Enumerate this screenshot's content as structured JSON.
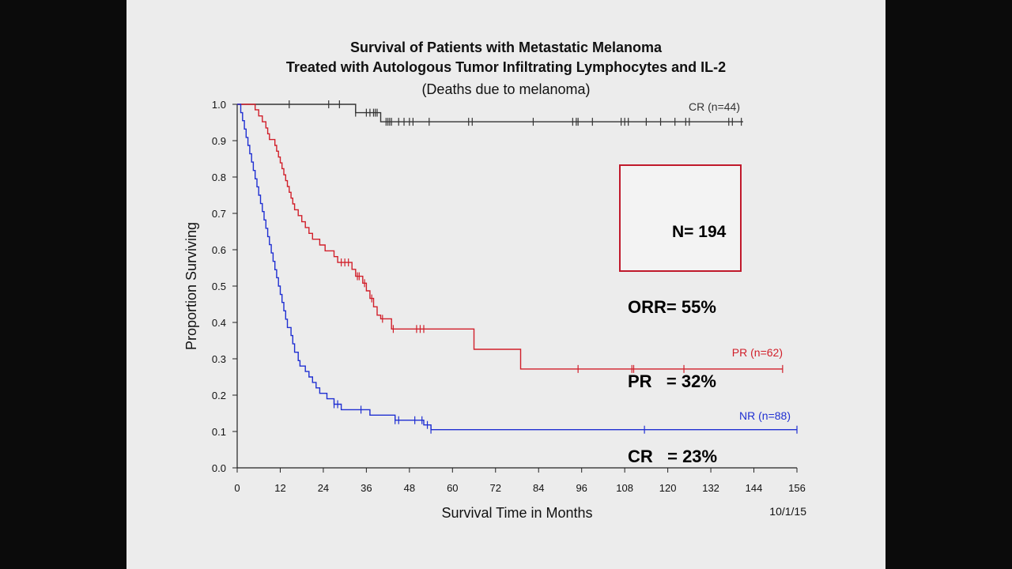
{
  "chart_data": {
    "type": "line",
    "title": "Survival of Patients with Metastatic Melanoma",
    "title_line2": "Treated with Autologous Tumor Infiltrating Lymphocytes and IL-2",
    "subtitle": "(Deaths due to melanoma)",
    "xlabel": "Survival Time in Months",
    "ylabel": "Proportion Surviving",
    "date_note": "10/1/15",
    "xlim": [
      0,
      156
    ],
    "ylim": [
      0.0,
      1.0
    ],
    "xticks": [
      "0",
      "12",
      "24",
      "36",
      "48",
      "60",
      "72",
      "84",
      "96",
      "108",
      "120",
      "132",
      "144",
      "156"
    ],
    "yticks": [
      "0.0",
      "0.1",
      "0.2",
      "0.3",
      "0.4",
      "0.5",
      "0.6",
      "0.7",
      "0.8",
      "0.9",
      "1.0"
    ],
    "grid": false,
    "series": [
      {
        "name": "CR (n=44)",
        "color": "#333333",
        "steps": [
          [
            0,
            1.0
          ],
          [
            33,
            1.0
          ],
          [
            33,
            0.977
          ],
          [
            40,
            0.977
          ],
          [
            40,
            0.952
          ],
          [
            141,
            0.952
          ]
        ],
        "censors": [
          14.5,
          25.5,
          28.5,
          33,
          36,
          37,
          38,
          38.5,
          39,
          41.5,
          42,
          42.5,
          43,
          45,
          46.5,
          48,
          49,
          53.5,
          64.5,
          65.5,
          82.5,
          93.5,
          94.5,
          95,
          99,
          107,
          108,
          109,
          114,
          118,
          122,
          125,
          126,
          137,
          138,
          140.5
        ]
      },
      {
        "name": "PR (n=62)",
        "color": "#d11f2a",
        "steps": [
          [
            0,
            1.0
          ],
          [
            5,
            1.0
          ],
          [
            5,
            0.985
          ],
          [
            6,
            0.985
          ],
          [
            6,
            0.968
          ],
          [
            7,
            0.968
          ],
          [
            7,
            0.952
          ],
          [
            8,
            0.952
          ],
          [
            8,
            0.935
          ],
          [
            8.5,
            0.935
          ],
          [
            8.5,
            0.919
          ],
          [
            9,
            0.919
          ],
          [
            9,
            0.903
          ],
          [
            10.5,
            0.903
          ],
          [
            10.5,
            0.887
          ],
          [
            11,
            0.887
          ],
          [
            11,
            0.871
          ],
          [
            11.5,
            0.871
          ],
          [
            11.5,
            0.855
          ],
          [
            12,
            0.855
          ],
          [
            12,
            0.839
          ],
          [
            12.5,
            0.839
          ],
          [
            12.5,
            0.823
          ],
          [
            13,
            0.823
          ],
          [
            13,
            0.806
          ],
          [
            13.5,
            0.806
          ],
          [
            13.5,
            0.79
          ],
          [
            14,
            0.79
          ],
          [
            14,
            0.774
          ],
          [
            14.5,
            0.774
          ],
          [
            14.5,
            0.758
          ],
          [
            15,
            0.758
          ],
          [
            15,
            0.742
          ],
          [
            15.5,
            0.742
          ],
          [
            15.5,
            0.726
          ],
          [
            16,
            0.726
          ],
          [
            16,
            0.71
          ],
          [
            17,
            0.71
          ],
          [
            17,
            0.694
          ],
          [
            18,
            0.694
          ],
          [
            18,
            0.677
          ],
          [
            19,
            0.677
          ],
          [
            19,
            0.661
          ],
          [
            20,
            0.661
          ],
          [
            20,
            0.645
          ],
          [
            21,
            0.645
          ],
          [
            21,
            0.629
          ],
          [
            23,
            0.629
          ],
          [
            23,
            0.613
          ],
          [
            24.5,
            0.613
          ],
          [
            24.5,
            0.597
          ],
          [
            27,
            0.597
          ],
          [
            27,
            0.581
          ],
          [
            28,
            0.581
          ],
          [
            28,
            0.565
          ],
          [
            32,
            0.565
          ],
          [
            32,
            0.546
          ],
          [
            33,
            0.546
          ],
          [
            33,
            0.527
          ],
          [
            35,
            0.527
          ],
          [
            35,
            0.508
          ],
          [
            36,
            0.508
          ],
          [
            36,
            0.487
          ],
          [
            37,
            0.487
          ],
          [
            37,
            0.466
          ],
          [
            38,
            0.466
          ],
          [
            38,
            0.443
          ],
          [
            39,
            0.443
          ],
          [
            39,
            0.42
          ],
          [
            40,
            0.42
          ],
          [
            40,
            0.41
          ],
          [
            43,
            0.41
          ],
          [
            43,
            0.382
          ],
          [
            66,
            0.382
          ],
          [
            66,
            0.326
          ],
          [
            79,
            0.326
          ],
          [
            79,
            0.272
          ],
          [
            152,
            0.272
          ]
        ],
        "censors": [
          29,
          30,
          31,
          33.5,
          34,
          35.5,
          37.5,
          40.5,
          43.5,
          50,
          51,
          52,
          95,
          110,
          110.5,
          124.5,
          152
        ]
      },
      {
        "name": "NR (n=88)",
        "color": "#1f2fd2",
        "steps": [
          [
            0,
            1.0
          ],
          [
            1,
            1.0
          ],
          [
            1,
            0.977
          ],
          [
            1.5,
            0.977
          ],
          [
            1.5,
            0.955
          ],
          [
            2,
            0.955
          ],
          [
            2,
            0.932
          ],
          [
            2.5,
            0.932
          ],
          [
            2.5,
            0.909
          ],
          [
            3,
            0.909
          ],
          [
            3,
            0.887
          ],
          [
            3.5,
            0.887
          ],
          [
            3.5,
            0.864
          ],
          [
            4,
            0.864
          ],
          [
            4,
            0.841
          ],
          [
            4.5,
            0.841
          ],
          [
            4.5,
            0.818
          ],
          [
            5,
            0.818
          ],
          [
            5,
            0.795
          ],
          [
            5.5,
            0.795
          ],
          [
            5.5,
            0.773
          ],
          [
            6,
            0.773
          ],
          [
            6,
            0.75
          ],
          [
            6.5,
            0.75
          ],
          [
            6.5,
            0.727
          ],
          [
            7,
            0.727
          ],
          [
            7,
            0.705
          ],
          [
            7.5,
            0.705
          ],
          [
            7.5,
            0.682
          ],
          [
            8,
            0.682
          ],
          [
            8,
            0.659
          ],
          [
            8.5,
            0.659
          ],
          [
            8.5,
            0.636
          ],
          [
            9,
            0.636
          ],
          [
            9,
            0.614
          ],
          [
            9.5,
            0.614
          ],
          [
            9.5,
            0.591
          ],
          [
            10,
            0.591
          ],
          [
            10,
            0.568
          ],
          [
            10.5,
            0.568
          ],
          [
            10.5,
            0.545
          ],
          [
            11,
            0.545
          ],
          [
            11,
            0.523
          ],
          [
            11.5,
            0.523
          ],
          [
            11.5,
            0.5
          ],
          [
            12,
            0.5
          ],
          [
            12,
            0.477
          ],
          [
            12.5,
            0.477
          ],
          [
            12.5,
            0.455
          ],
          [
            13,
            0.455
          ],
          [
            13,
            0.432
          ],
          [
            13.5,
            0.432
          ],
          [
            13.5,
            0.409
          ],
          [
            14,
            0.409
          ],
          [
            14,
            0.386
          ],
          [
            15,
            0.386
          ],
          [
            15,
            0.364
          ],
          [
            15.5,
            0.364
          ],
          [
            15.5,
            0.341
          ],
          [
            16,
            0.341
          ],
          [
            16,
            0.318
          ],
          [
            17,
            0.318
          ],
          [
            17,
            0.295
          ],
          [
            17.5,
            0.295
          ],
          [
            17.5,
            0.28
          ],
          [
            19,
            0.28
          ],
          [
            19,
            0.265
          ],
          [
            20,
            0.265
          ],
          [
            20,
            0.25
          ],
          [
            21,
            0.25
          ],
          [
            21,
            0.235
          ],
          [
            22,
            0.235
          ],
          [
            22,
            0.22
          ],
          [
            23,
            0.22
          ],
          [
            23,
            0.205
          ],
          [
            25,
            0.205
          ],
          [
            25,
            0.19
          ],
          [
            27,
            0.19
          ],
          [
            27,
            0.175
          ],
          [
            29,
            0.175
          ],
          [
            29,
            0.16
          ],
          [
            37,
            0.16
          ],
          [
            37,
            0.145
          ],
          [
            44,
            0.145
          ],
          [
            44,
            0.131
          ],
          [
            52,
            0.131
          ],
          [
            52,
            0.118
          ],
          [
            54,
            0.118
          ],
          [
            54,
            0.105
          ],
          [
            156,
            0.105
          ]
        ],
        "censors": [
          27,
          28,
          34.5,
          44,
          45,
          49.5,
          51.5,
          53,
          54,
          113.5,
          156
        ]
      }
    ],
    "stats": [
      "N= 194",
      "ORR= 55%",
      "PR   = 32%",
      "CR   = 23%"
    ]
  }
}
